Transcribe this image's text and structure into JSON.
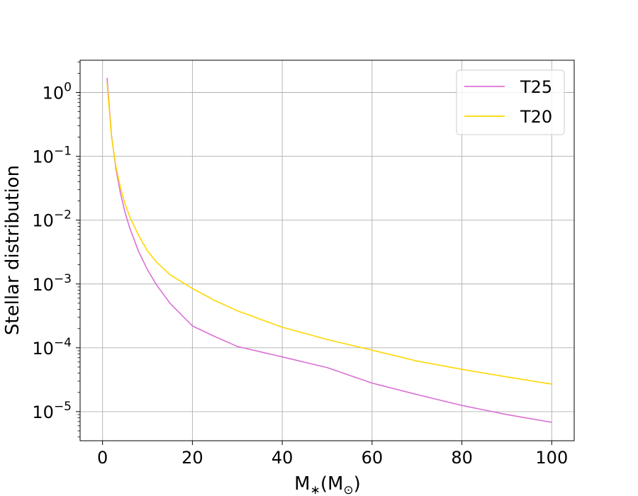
{
  "chart_data": {
    "type": "line",
    "title": "",
    "xlabel": "M*(M⊙)",
    "ylabel": "Stellar distribution",
    "xscale": "linear",
    "yscale": "log",
    "xlim": [
      -5,
      105
    ],
    "ylim": [
      3.5e-06,
      3.2
    ],
    "xticks": [
      0,
      20,
      40,
      60,
      80,
      100
    ],
    "xtick_labels": [
      "0",
      "20",
      "40",
      "60",
      "80",
      "100"
    ],
    "yticks": [
      1e-05,
      0.0001,
      0.001,
      0.01,
      0.1,
      1
    ],
    "ytick_labels": [
      {
        "base": "10",
        "exp": "−5"
      },
      {
        "base": "10",
        "exp": "−4"
      },
      {
        "base": "10",
        "exp": "−3"
      },
      {
        "base": "10",
        "exp": "−2"
      },
      {
        "base": "10",
        "exp": "−1"
      },
      {
        "base": "10",
        "exp": "0"
      }
    ],
    "grid": true,
    "legend_position": "top-right",
    "series": [
      {
        "name": "T25",
        "color": "#da70d6",
        "x": [
          1,
          2,
          3,
          4,
          5,
          6,
          8,
          10,
          12,
          15,
          20,
          25,
          30,
          40,
          50,
          60,
          70,
          80,
          90,
          100
        ],
        "y": [
          1.7,
          0.21,
          0.062,
          0.026,
          0.0133,
          0.0077,
          0.00325,
          0.00167,
          0.00097,
          0.0005,
          0.00022,
          0.00015,
          0.000105,
          7.2e-05,
          4.9e-05,
          2.8e-05,
          1.85e-05,
          1.25e-05,
          9e-06,
          6.8e-06
        ]
      },
      {
        "name": "T20",
        "color": "#ffd700",
        "x": [
          1,
          2,
          3,
          4,
          5,
          6,
          8,
          10,
          12,
          15,
          20,
          25,
          30,
          40,
          50,
          60,
          70,
          80,
          90,
          100
        ],
        "y": [
          1.4,
          0.2,
          0.068,
          0.032,
          0.018,
          0.0115,
          0.0058,
          0.0033,
          0.0022,
          0.0014,
          0.00085,
          0.00055,
          0.00038,
          0.00021,
          0.000135,
          9.2e-05,
          6.2e-05,
          4.6e-05,
          3.5e-05,
          2.7e-05
        ]
      }
    ]
  }
}
